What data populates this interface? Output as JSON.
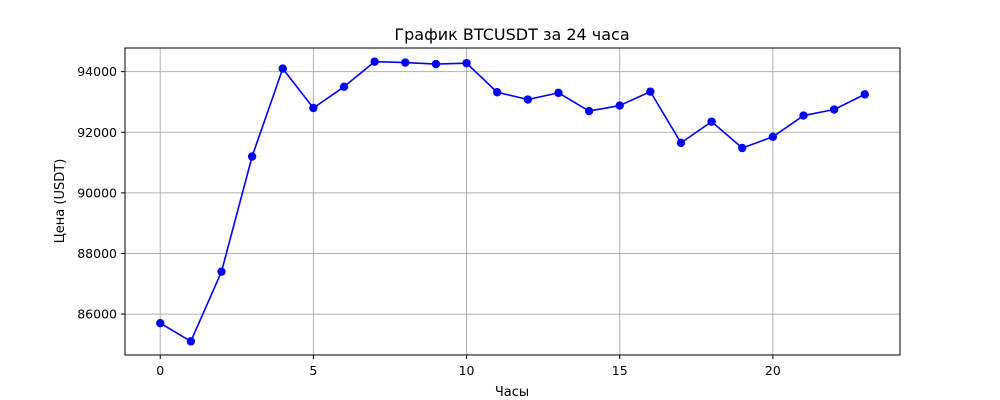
{
  "chart_data": {
    "type": "line",
    "title": "График BTCUSDT за 24 часа",
    "xlabel": "Часы",
    "ylabel": "Цена (USDT)",
    "x": [
      0,
      1,
      2,
      3,
      4,
      5,
      6,
      7,
      8,
      9,
      10,
      11,
      12,
      13,
      14,
      15,
      16,
      17,
      18,
      19,
      20,
      21,
      22,
      23
    ],
    "series": [
      {
        "values": [
          85700,
          85100,
          87400,
          91200,
          94100,
          92800,
          93500,
          94330,
          94300,
          94250,
          94280,
          93320,
          93080,
          93300,
          92700,
          92880,
          93340,
          91650,
          92350,
          91480,
          91850,
          92550,
          92750,
          93250
        ],
        "color": "#0000ff"
      }
    ],
    "xlim": [
      -1.15,
      24.15
    ],
    "ylim": [
      84650,
      94780
    ],
    "xticks": [
      0,
      5,
      10,
      15,
      20
    ],
    "xtick_labels": [
      "0",
      "5",
      "10",
      "15",
      "20"
    ],
    "yticks": [
      86000,
      88000,
      90000,
      92000,
      94000
    ],
    "ytick_labels": [
      "86000",
      "88000",
      "90000",
      "92000",
      "94000"
    ],
    "grid": true,
    "legend": "none"
  }
}
